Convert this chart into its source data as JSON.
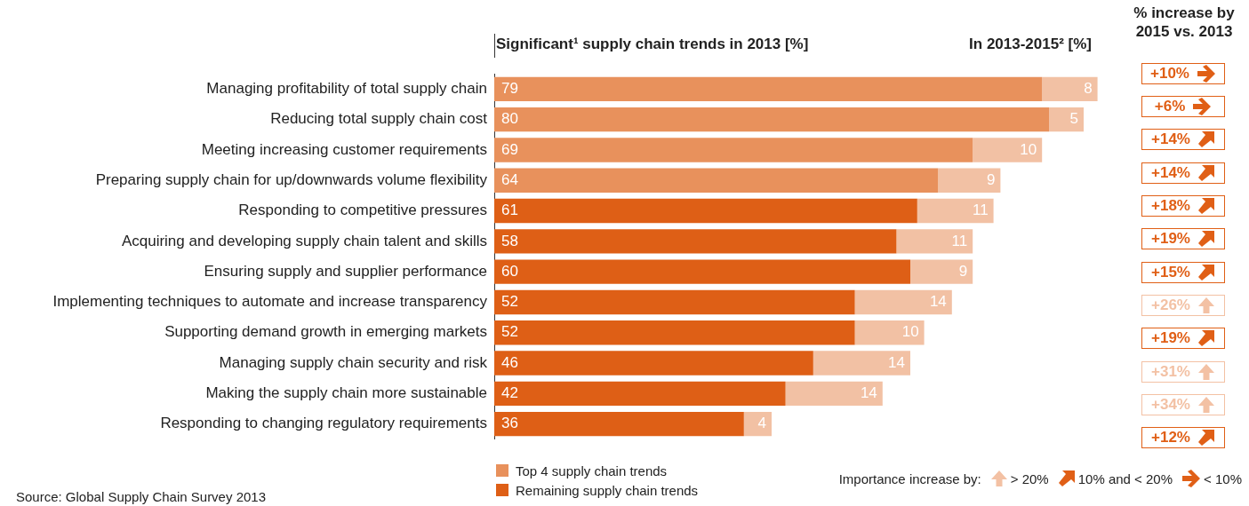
{
  "chart_data": [
    {
      "type": "bar",
      "orientation": "horizontal",
      "stacked": true,
      "title": "Significant¹ supply chain trends in 2013 [%]",
      "subtitle": "In 2013-2015² [%]",
      "categories": [
        "Managing profitability of total supply chain",
        "Reducing total supply chain cost",
        "Meeting increasing customer requirements",
        "Preparing supply chain for up/downwards volume flexibility",
        "Responding to competitive pressures",
        "Acquiring and developing supply chain talent and skills",
        "Ensuring supply and supplier performance",
        "Implementing techniques to automate and increase transparency",
        "Supporting demand growth in emerging markets",
        "Managing supply chain security and risk",
        "Making the supply chain more sustainable",
        "Responding to changing regulatory requirements"
      ],
      "series": [
        {
          "name": "Top 4 supply chain trends",
          "color": "#e8915c",
          "values": [
            79,
            80,
            69,
            64,
            null,
            null,
            null,
            null,
            null,
            null,
            null,
            null
          ]
        },
        {
          "name": "Remaining supply chain trends",
          "color": "#de5f16",
          "values": [
            null,
            null,
            null,
            null,
            61,
            58,
            60,
            52,
            52,
            46,
            42,
            36
          ]
        },
        {
          "color": "#f2c1a4",
          "values": [
            8,
            5,
            10,
            9,
            11,
            11,
            9,
            14,
            10,
            14,
            14,
            4
          ]
        }
      ],
      "tick_labels": "y",
      "data_labels": true,
      "legend": "bottom left",
      "annotations": [
        "Source: Global Supply Chain Survey 2013"
      ]
    },
    {
      "type": "other",
      "title": "% increase by 2015 vs. 2013",
      "legend_title": "Importance increase by:",
      "categories": [
        "> 20%",
        "10% and < 20%",
        "< 10%"
      ],
      "colors": [
        "#f3c1a4",
        "#e05f16",
        "#e05f16"
      ],
      "annotations": [
        {
          "text": "+10%",
          "x": "< 10%"
        },
        {
          "text": "+6%",
          "x": "< 10%"
        },
        {
          "text": "+14%",
          "x": "10% and < 20%"
        },
        {
          "text": "+14%",
          "x": "10% and < 20%"
        },
        {
          "text": "+18%",
          "x": "10% and < 20%"
        },
        {
          "text": "+19%",
          "x": "10% and < 20%"
        },
        {
          "text": "+15%",
          "x": "10% and < 20%"
        },
        {
          "text": "+26%",
          "x": "> 20%"
        },
        {
          "text": "+19%",
          "x": "10% and < 20%"
        },
        {
          "text": "+31%",
          "x": "> 20%"
        },
        {
          "text": "+34%",
          "x": "> 20%"
        },
        {
          "text": "+12%",
          "x": "10% and < 20%"
        }
      ]
    }
  ]
}
